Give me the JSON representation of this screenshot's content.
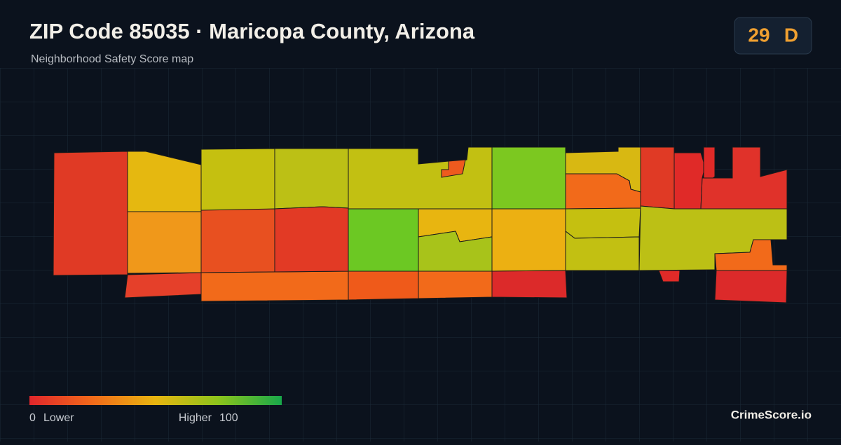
{
  "header": {
    "title": "ZIP Code 85035 · Maricopa County, Arizona",
    "subtitle": "Neighborhood Safety Score map"
  },
  "score": {
    "value": 29,
    "grade": "D"
  },
  "legend": {
    "min": 0,
    "min_label": "Lower",
    "max_label": "Higher",
    "max": 100
  },
  "brand": "CrimeScore.io"
}
